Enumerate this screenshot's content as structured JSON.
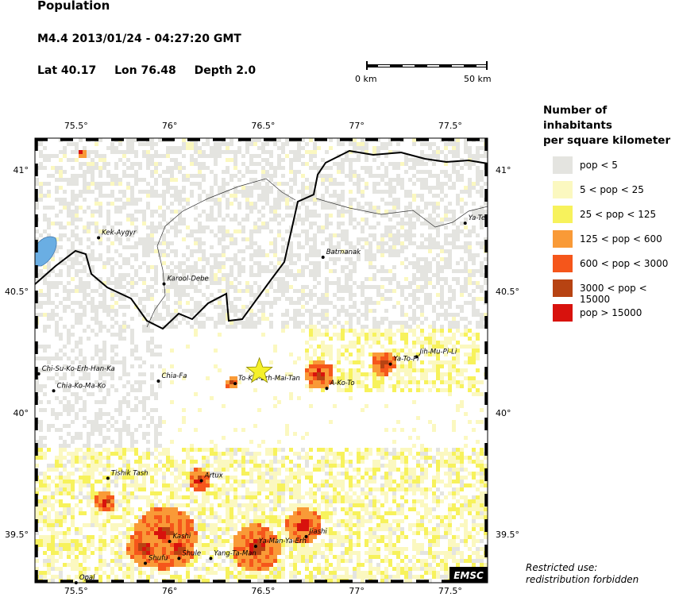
{
  "header": {
    "title": "Population",
    "event": "M4.4  2013/01/24 - 04:27:20 GMT",
    "lat": "Lat 40.17",
    "lon": "Lon  76.48",
    "depth": "Depth  2.0"
  },
  "scale_bar": {
    "left_label": "0 km",
    "right_label": "50 km",
    "length_km": 50
  },
  "map": {
    "lon_range": [
      75.28,
      77.7
    ],
    "lat_range": [
      39.3,
      41.13
    ],
    "lon_ticks": [
      "75.5°",
      "76°",
      "76.5°",
      "77°",
      "77.5°"
    ],
    "lon_tick_values": [
      75.5,
      76,
      76.5,
      77,
      77.5
    ],
    "lat_ticks": [
      "41°",
      "40.5°",
      "40°",
      "39.5°"
    ],
    "lat_tick_values": [
      41,
      40.5,
      40,
      39.5
    ],
    "epicenter": {
      "lon": 76.48,
      "lat": 40.17,
      "symbol": "star-icon",
      "color": "#f5f02a"
    },
    "places": [
      {
        "name": "Kek-Aygyr",
        "lon": 75.62,
        "lat": 40.72
      },
      {
        "name": "Karool-Debe",
        "lon": 75.97,
        "lat": 40.53
      },
      {
        "name": "Batmanak",
        "lon": 76.82,
        "lat": 40.64
      },
      {
        "name": "Ya-Te",
        "lon": 77.58,
        "lat": 40.78
      },
      {
        "name": "Jih-Mu-Pi-Li",
        "lon": 77.32,
        "lat": 40.23
      },
      {
        "name": "Ya-To-Pi",
        "lon": 77.18,
        "lat": 40.2
      },
      {
        "name": "Chi-Su-Ko-Erh-Han-Ka",
        "lon": 75.3,
        "lat": 40.16
      },
      {
        "name": "Chia-Fa",
        "lon": 75.94,
        "lat": 40.13
      },
      {
        "name": "To-Kai-Erh-Mai-Tan",
        "lon": 76.35,
        "lat": 40.12
      },
      {
        "name": "A-Ko-To",
        "lon": 76.84,
        "lat": 40.1
      },
      {
        "name": "Chia-Ko-Ma-Ko",
        "lon": 75.38,
        "lat": 40.09
      },
      {
        "name": "Tishik Tash",
        "lon": 75.67,
        "lat": 39.73
      },
      {
        "name": "Artux",
        "lon": 76.17,
        "lat": 39.72
      },
      {
        "name": "Kashi",
        "lon": 76.0,
        "lat": 39.47
      },
      {
        "name": "Jiashi",
        "lon": 76.73,
        "lat": 39.49
      },
      {
        "name": "Ya-Man-Ya-Erh",
        "lon": 76.46,
        "lat": 39.45
      },
      {
        "name": "Shufu",
        "lon": 75.87,
        "lat": 39.38
      },
      {
        "name": "Shule",
        "lon": 76.05,
        "lat": 39.4
      },
      {
        "name": "Yang-Ta-Man",
        "lon": 76.22,
        "lat": 39.4
      },
      {
        "name": "Opal",
        "lon": 75.5,
        "lat": 39.3
      }
    ],
    "badge": "EMSC",
    "lake_color": "#6aaee3"
  },
  "legend": {
    "title_line1": "Number of inhabitants",
    "title_line2": "per square kilometer",
    "items": [
      {
        "label": "pop < 5",
        "color": "#e4e4e0"
      },
      {
        "label": "5 < pop < 25",
        "color": "#fbf8c0"
      },
      {
        "label": "25 < pop < 125",
        "color": "#f7f25c"
      },
      {
        "label": "125 < pop < 600",
        "color": "#f99a37"
      },
      {
        "label": "600 < pop < 3000",
        "color": "#f5561b"
      },
      {
        "label": "3000 < pop < 15000",
        "color": "#b74312"
      },
      {
        "label": "pop > 15000",
        "color": "#d8120d"
      }
    ]
  },
  "notice": {
    "line1": "Restricted use:",
    "line2": "redistribution forbidden"
  }
}
